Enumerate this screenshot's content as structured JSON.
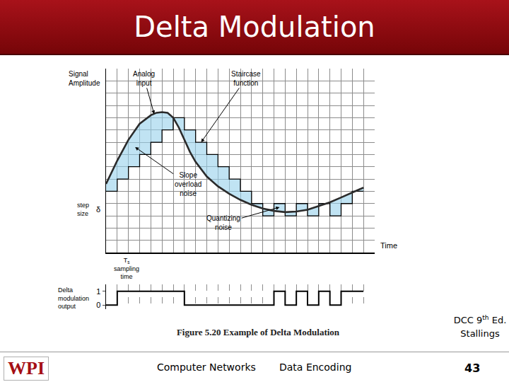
{
  "slide": {
    "title": "Delta Modulation",
    "caption": "Figure 5.20  Example of Delta Modulation",
    "source": {
      "prefix": "DCC 9",
      "superscript": "th",
      "suffix": " Ed.",
      "line2": "Stallings"
    },
    "footer": {
      "logo": "WPI",
      "course": "Computer Networks",
      "topic": "Data Encoding",
      "page": "43"
    }
  },
  "chart_data": [
    {
      "type": "line",
      "x_label": "Time",
      "y_label": "Signal\nAmplitude",
      "xlim": [
        0,
        24
      ],
      "ylim": [
        0,
        15
      ],
      "xticks": [
        0,
        1,
        2,
        3,
        4,
        5,
        6,
        7,
        8,
        9,
        10,
        11,
        12,
        13,
        14,
        15,
        16,
        17,
        18,
        19,
        20,
        21,
        22,
        23,
        24
      ],
      "yticks": [
        0,
        1,
        2,
        3,
        4,
        5,
        6,
        7,
        8,
        9,
        10,
        11,
        12,
        13,
        14,
        15
      ],
      "grid": true,
      "tick_labels": false,
      "series": [
        {
          "type": "step",
          "color": "#000000",
          "x": [
            0,
            1,
            2,
            3,
            4,
            5,
            6,
            7,
            8,
            9,
            10,
            11,
            12,
            13,
            14,
            15,
            16,
            17,
            18,
            19,
            20,
            21,
            22,
            23
          ],
          "values": [
            5,
            6,
            7,
            8,
            9,
            10,
            11,
            10,
            9,
            8,
            7,
            6,
            5,
            4,
            3,
            4,
            3,
            4,
            3,
            4,
            3,
            4,
            5,
            5
          ]
        },
        {
          "type": "line",
          "color": "#2b2b2b",
          "x": [
            0,
            1,
            2,
            3,
            4,
            4.5,
            5,
            5.5,
            6,
            6.5,
            7,
            7.5,
            8,
            9,
            10,
            11,
            12,
            13,
            14,
            15,
            16,
            17,
            18,
            19,
            20,
            21,
            22,
            23
          ],
          "values": [
            5.6,
            7.5,
            9.2,
            10.5,
            11.2,
            11.4,
            11.45,
            11.4,
            11.0,
            10.2,
            9.2,
            8.2,
            7.4,
            6.2,
            5.4,
            4.8,
            4.3,
            3.9,
            3.6,
            3.4,
            3.3,
            3.35,
            3.5,
            3.8,
            4.1,
            4.5,
            4.9,
            5.3
          ]
        }
      ],
      "annotations": [
        "Analog\ninput",
        "Staircase\nfunction",
        "Slope\noverload\nnoise",
        "Quantizing\nnoise"
      ],
      "step_size": {
        "text": "step\nsize",
        "symbol": "δ"
      },
      "sampling_time": {
        "symbol": "T",
        "subscript": "s",
        "text": "sampling\ntime"
      }
    },
    {
      "type": "step",
      "y_label": "Delta\nmodulation\noutput",
      "xlim": [
        0,
        24
      ],
      "ylim": [
        -0.3,
        1.5
      ],
      "xticks": [
        0,
        1,
        2,
        3,
        4,
        5,
        6,
        7,
        8,
        9,
        10,
        11,
        12,
        13,
        14,
        15,
        16,
        17,
        18,
        19,
        20,
        21,
        22,
        23,
        24
      ],
      "yticks": [
        0,
        1
      ],
      "grid": "x",
      "tick_labels": "y",
      "series": [
        {
          "color": "#000000",
          "x": [
            0,
            1,
            2,
            3,
            4,
            5,
            6,
            7,
            8,
            9,
            10,
            11,
            12,
            13,
            14,
            15,
            16,
            17,
            18,
            19,
            20,
            21,
            22,
            23
          ],
          "values": [
            0,
            1,
            1,
            1,
            1,
            1,
            1,
            0,
            0,
            0,
            0,
            0,
            0,
            0,
            0,
            1,
            0,
            1,
            0,
            1,
            0,
            1,
            1,
            1
          ]
        }
      ]
    }
  ]
}
